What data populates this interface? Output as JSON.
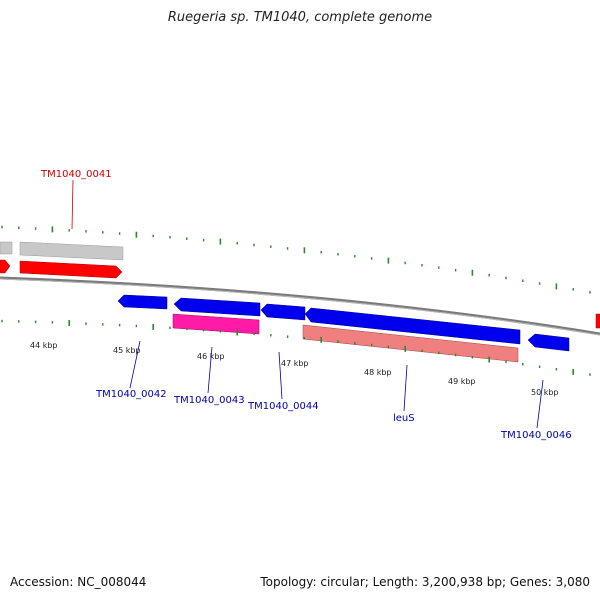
{
  "header": {
    "title": "Ruegeria sp. TM1040, complete genome"
  },
  "footer": {
    "accession": "Accession: NC_008044",
    "summary": "Topology: circular; Length: 3,200,938 bp; Genes: 3,080"
  },
  "colors": {
    "backbone": "#808080",
    "tick": "#2a8a2a",
    "label_red": "#cc0000",
    "label_blue": "#0000aa",
    "gene_grey": "#c8c8c8",
    "gene_red": "#ff0000",
    "gene_blue": "#0000ee",
    "gene_magenta": "#ff1aa8",
    "gene_pink": "#f08080"
  },
  "scale_labels": [
    "44 kbp",
    "45 kbp",
    "46 kbp",
    "47 kbp",
    "48 kbp",
    "49 kbp",
    "50 kbp"
  ],
  "genes": [
    {
      "label": "TM1040_0041",
      "color": "label_red"
    },
    {
      "label": "TM1040_0042",
      "color": "label_blue"
    },
    {
      "label": "TM1040_0043",
      "color": "label_blue"
    },
    {
      "label": "TM1040_0044",
      "color": "label_blue"
    },
    {
      "label": "leuS",
      "color": "label_blue"
    },
    {
      "label": "TM1040_0046",
      "color": "label_blue"
    }
  ]
}
